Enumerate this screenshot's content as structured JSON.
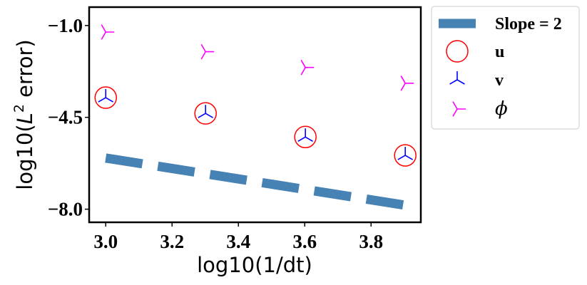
{
  "chart_data": {
    "type": "scatter",
    "title": "",
    "xlabel": "log10(1/dt)",
    "ylabel": "log10(L^2 error)",
    "ylabel_parts": {
      "prefix": "log10(",
      "symbol": "L",
      "superscript": "2",
      "suffix": " error)"
    },
    "xlim": [
      2.95,
      3.95
    ],
    "ylim": [
      -8.5,
      -0.3
    ],
    "x_ticks": [
      3.0,
      3.2,
      3.4,
      3.6,
      3.8
    ],
    "x_tick_labels": [
      "3.0",
      "3.2",
      "3.4",
      "3.6",
      "3.8"
    ],
    "y_ticks": [
      -1.0,
      -4.5,
      -8.0
    ],
    "y_tick_labels": [
      "−1.0",
      "−4.5",
      "−8.0"
    ],
    "grid": false,
    "legend_position": "outside-right-top",
    "series": [
      {
        "name": "Slope = 2",
        "marker": "dashed-line",
        "color": "#4682b4",
        "x": [
          3.0,
          3.9031
        ],
        "y": [
          -6.05,
          -7.85
        ]
      },
      {
        "name": "u",
        "marker": "circle-open",
        "color": "#ff0000",
        "x": [
          3.0,
          3.301,
          3.602,
          3.9031
        ],
        "y": [
          -3.75,
          -4.35,
          -5.25,
          -5.95
        ]
      },
      {
        "name": "v",
        "marker": "tri-down",
        "color": "#0000ff",
        "x": [
          3.0,
          3.301,
          3.602,
          3.9031
        ],
        "y": [
          -3.75,
          -4.35,
          -5.25,
          -5.95
        ]
      },
      {
        "name": "ϕ",
        "marker": "tri-right",
        "color": "#ff00ff",
        "x": [
          3.0,
          3.301,
          3.602,
          3.9031
        ],
        "y": [
          -1.25,
          -2.0,
          -2.6,
          -3.2
        ]
      }
    ]
  }
}
